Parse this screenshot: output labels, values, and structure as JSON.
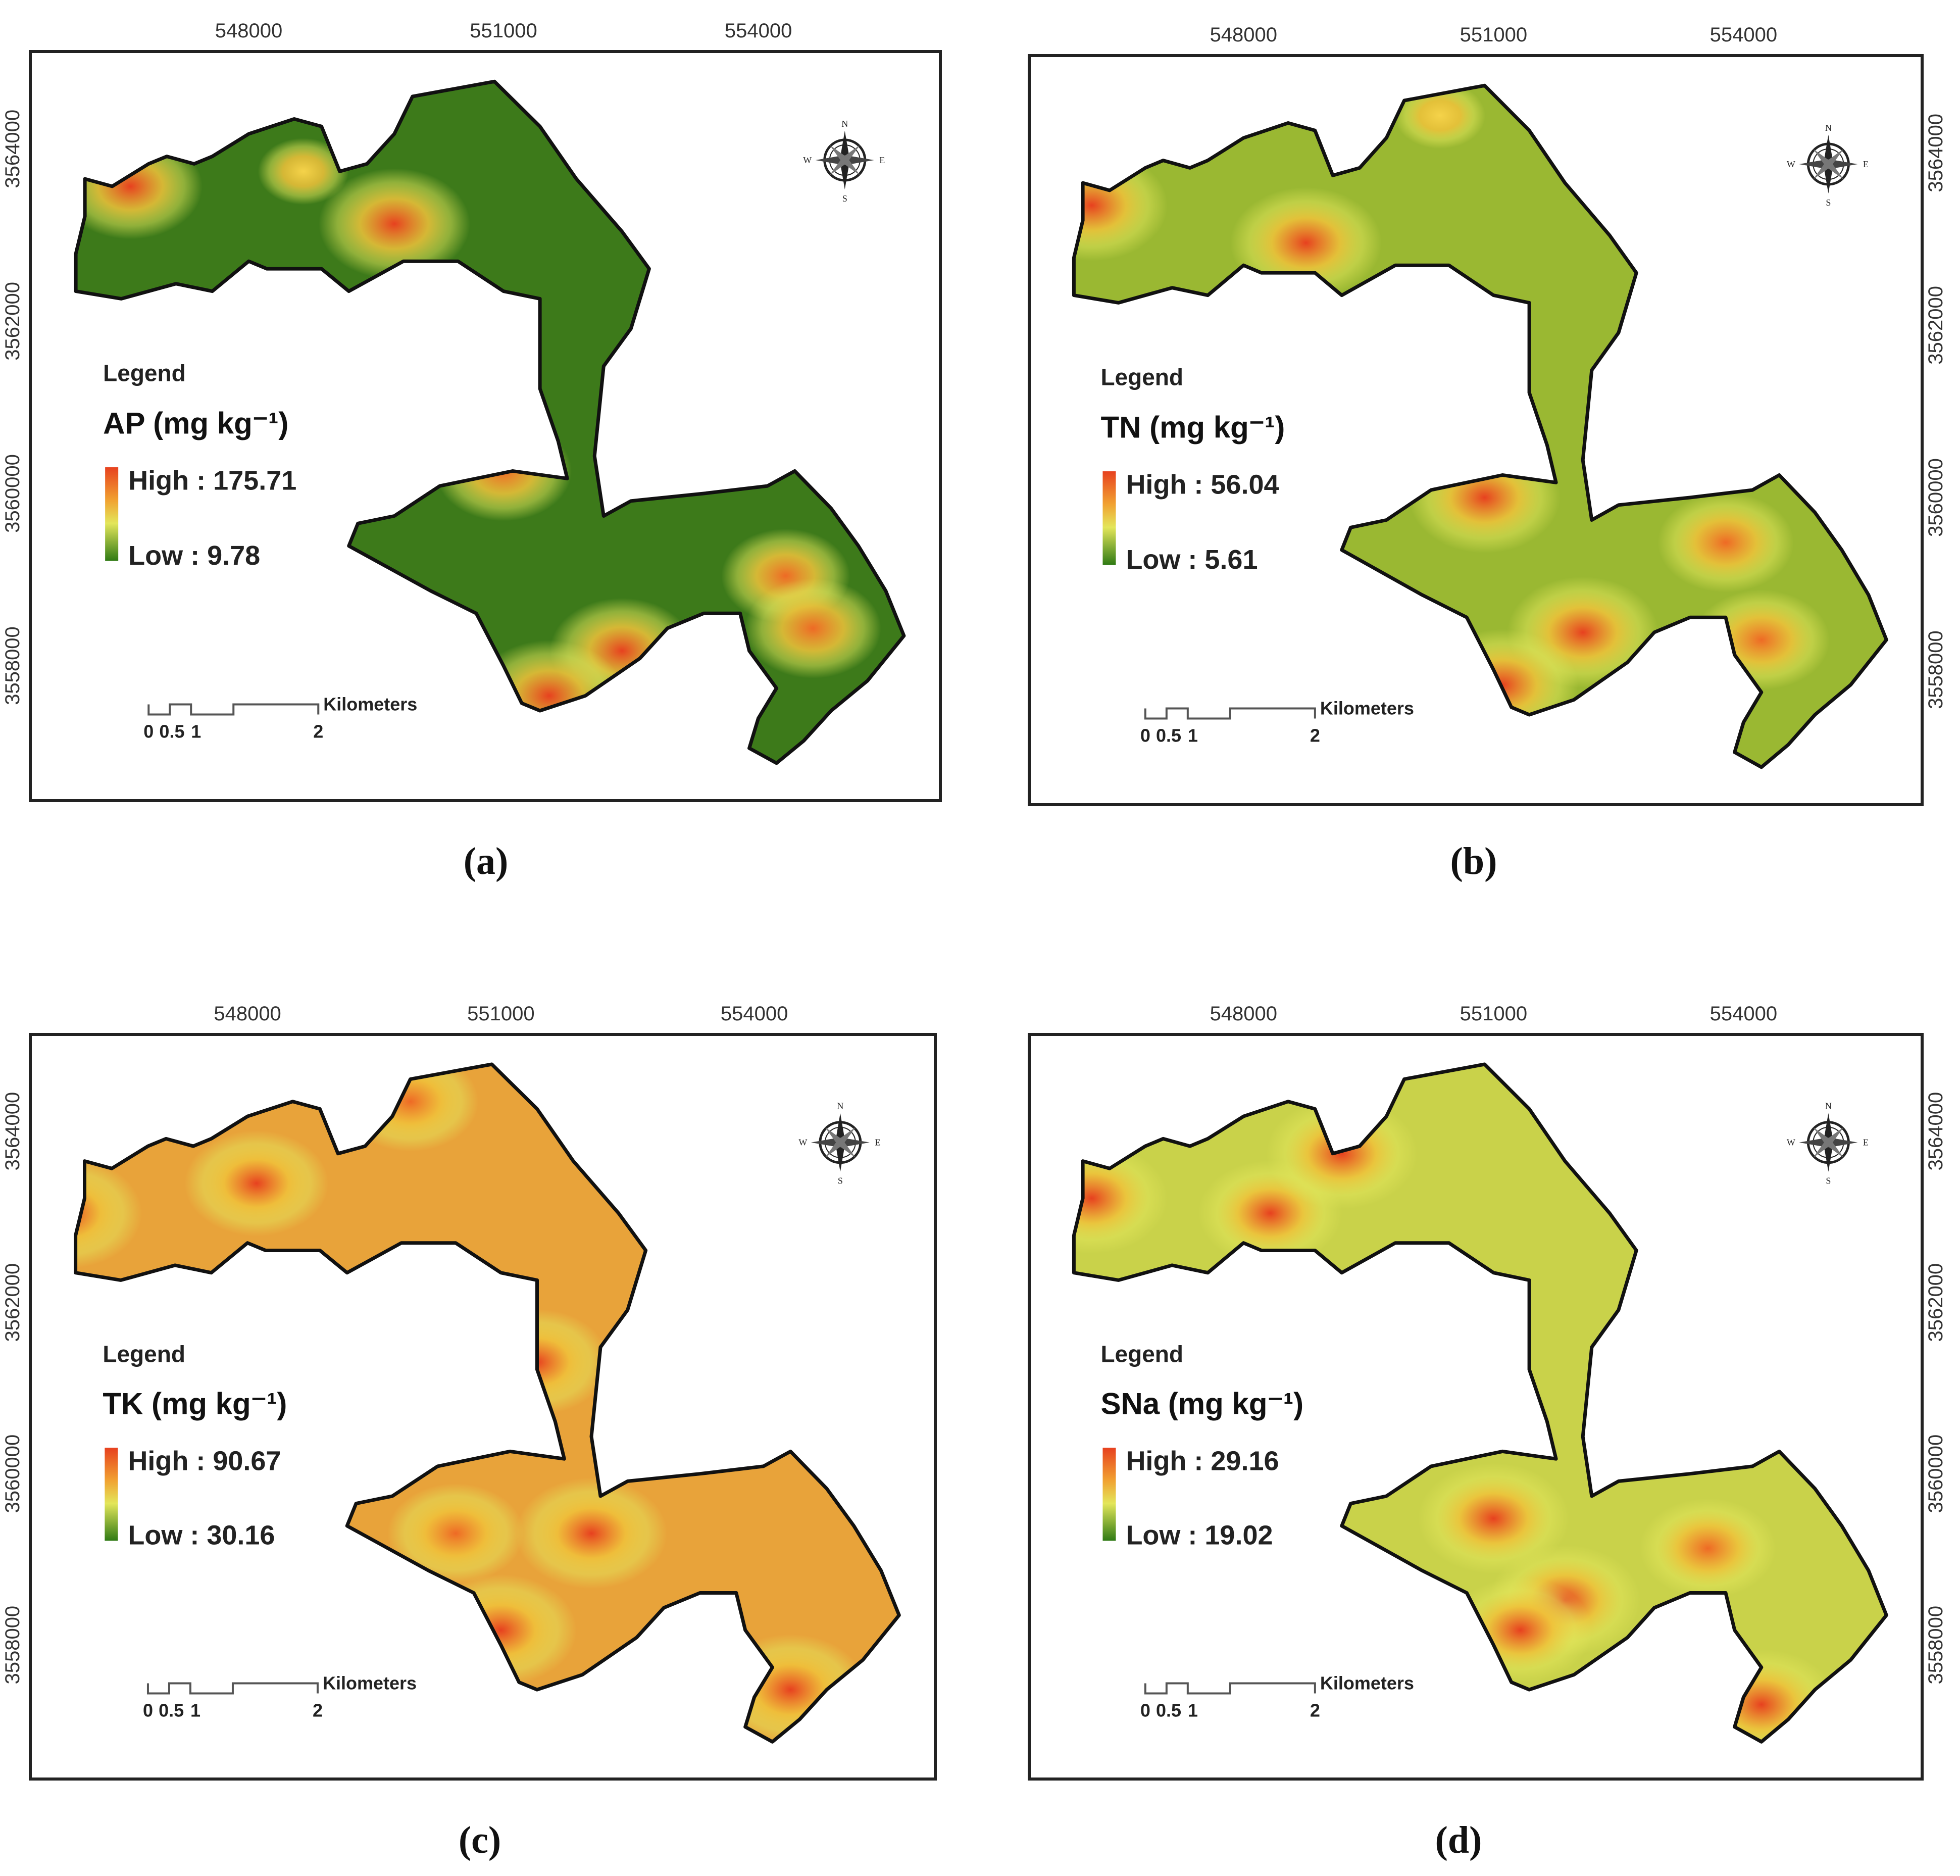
{
  "panels": [
    {
      "id": "a",
      "caption": "(a)",
      "legend_title": "Legend",
      "variable": "AP (mg kg⁻¹)",
      "high_label": "High : 175.71",
      "low_label": "Low : 9.78",
      "high": 175.71,
      "low": 9.78,
      "x_ticks": [
        "548000",
        "551000",
        "554000"
      ],
      "y_ticks": [
        "3564000",
        "3562000",
        "3560000",
        "3558000"
      ],
      "y_axis_side": "left",
      "scale_bar": {
        "unit": "Kilometers",
        "ticks": [
          "0",
          "0.5",
          "1",
          "2"
        ]
      },
      "compass": {
        "n": "N",
        "e": "E",
        "s": "S",
        "w": "W"
      },
      "dominant_color": "#3d7a1a",
      "hotspots": [
        {
          "x": 0.11,
          "y": 0.18,
          "level": 0.95
        },
        {
          "x": 0.3,
          "y": 0.16,
          "level": 0.6
        },
        {
          "x": 0.4,
          "y": 0.23,
          "level": 1.0
        },
        {
          "x": 0.52,
          "y": 0.56,
          "level": 0.9
        },
        {
          "x": 0.65,
          "y": 0.8,
          "level": 0.95
        },
        {
          "x": 0.57,
          "y": 0.86,
          "level": 1.0
        },
        {
          "x": 0.83,
          "y": 0.7,
          "level": 0.85
        },
        {
          "x": 0.86,
          "y": 0.77,
          "level": 0.9
        }
      ]
    },
    {
      "id": "b",
      "caption": "(b)",
      "legend_title": "Legend",
      "variable": "TN (mg kg⁻¹)",
      "high_label": "High : 56.04",
      "low_label": "Low : 5.61",
      "high": 56.04,
      "low": 5.61,
      "x_ticks": [
        "548000",
        "551000",
        "554000"
      ],
      "y_ticks": [
        "3564000",
        "3562000",
        "3560000",
        "3558000"
      ],
      "y_axis_side": "right",
      "scale_bar": {
        "unit": "Kilometers",
        "ticks": [
          "0",
          "0.5",
          "1",
          "2"
        ]
      },
      "compass": {
        "n": "N",
        "e": "E",
        "s": "S",
        "w": "W"
      },
      "dominant_color": "#9ab832",
      "hotspots": [
        {
          "x": 0.07,
          "y": 0.2,
          "level": 1.0
        },
        {
          "x": 0.31,
          "y": 0.25,
          "level": 1.0
        },
        {
          "x": 0.51,
          "y": 0.59,
          "level": 1.0
        },
        {
          "x": 0.62,
          "y": 0.77,
          "level": 1.0
        },
        {
          "x": 0.53,
          "y": 0.84,
          "level": 1.0
        },
        {
          "x": 0.78,
          "y": 0.65,
          "level": 0.9
        },
        {
          "x": 0.82,
          "y": 0.78,
          "level": 0.9
        },
        {
          "x": 0.46,
          "y": 0.08,
          "level": 0.6
        },
        {
          "x": 0.49,
          "y": 0.43,
          "level": 0.6
        }
      ]
    },
    {
      "id": "c",
      "caption": "(c)",
      "legend_title": "Legend",
      "variable": "TK (mg kg⁻¹)",
      "high_label": "High : 90.67",
      "low_label": "Low : 30.16",
      "high": 90.67,
      "low": 30.16,
      "x_ticks": [
        "548000",
        "551000",
        "554000"
      ],
      "y_ticks": [
        "3564000",
        "3562000",
        "3560000",
        "3558000"
      ],
      "y_axis_side": "left",
      "scale_bar": {
        "unit": "Kilometers",
        "ticks": [
          "0",
          "0.5",
          "1",
          "2"
        ]
      },
      "compass": {
        "n": "N",
        "e": "E",
        "s": "S",
        "w": "W"
      },
      "dominant_color": "#e8a33a",
      "hotspots": [
        {
          "x": 0.04,
          "y": 0.24,
          "level": 1.0
        },
        {
          "x": 0.25,
          "y": 0.2,
          "level": 0.95
        },
        {
          "x": 0.42,
          "y": 0.09,
          "level": 0.9
        },
        {
          "x": 0.56,
          "y": 0.44,
          "level": 0.95
        },
        {
          "x": 0.62,
          "y": 0.67,
          "level": 1.0
        },
        {
          "x": 0.52,
          "y": 0.8,
          "level": 1.0
        },
        {
          "x": 0.84,
          "y": 0.88,
          "level": 1.0
        },
        {
          "x": 0.47,
          "y": 0.67,
          "level": 0.9
        }
      ]
    },
    {
      "id": "d",
      "caption": "(d)",
      "legend_title": "Legend",
      "variable": "SNa (mg kg⁻¹)",
      "high_label": "High : 29.16",
      "low_label": "Low : 19.02",
      "high": 29.16,
      "low": 19.02,
      "x_ticks": [
        "548000",
        "551000",
        "554000"
      ],
      "y_ticks": [
        "3564000",
        "3562000",
        "3560000",
        "3558000"
      ],
      "y_axis_side": "right",
      "scale_bar": {
        "unit": "Kilometers",
        "ticks": [
          "0",
          "0.5",
          "1",
          "2"
        ]
      },
      "compass": {
        "n": "N",
        "e": "E",
        "s": "S",
        "w": "W"
      },
      "dominant_color": "#c9d24a",
      "hotspots": [
        {
          "x": 0.07,
          "y": 0.22,
          "level": 1.0
        },
        {
          "x": 0.27,
          "y": 0.24,
          "level": 0.95
        },
        {
          "x": 0.35,
          "y": 0.16,
          "level": 1.0
        },
        {
          "x": 0.52,
          "y": 0.65,
          "level": 1.0
        },
        {
          "x": 0.6,
          "y": 0.76,
          "level": 1.0
        },
        {
          "x": 0.82,
          "y": 0.9,
          "level": 1.0
        },
        {
          "x": 0.55,
          "y": 0.8,
          "level": 0.95
        },
        {
          "x": 0.76,
          "y": 0.69,
          "level": 0.9
        }
      ]
    }
  ]
}
